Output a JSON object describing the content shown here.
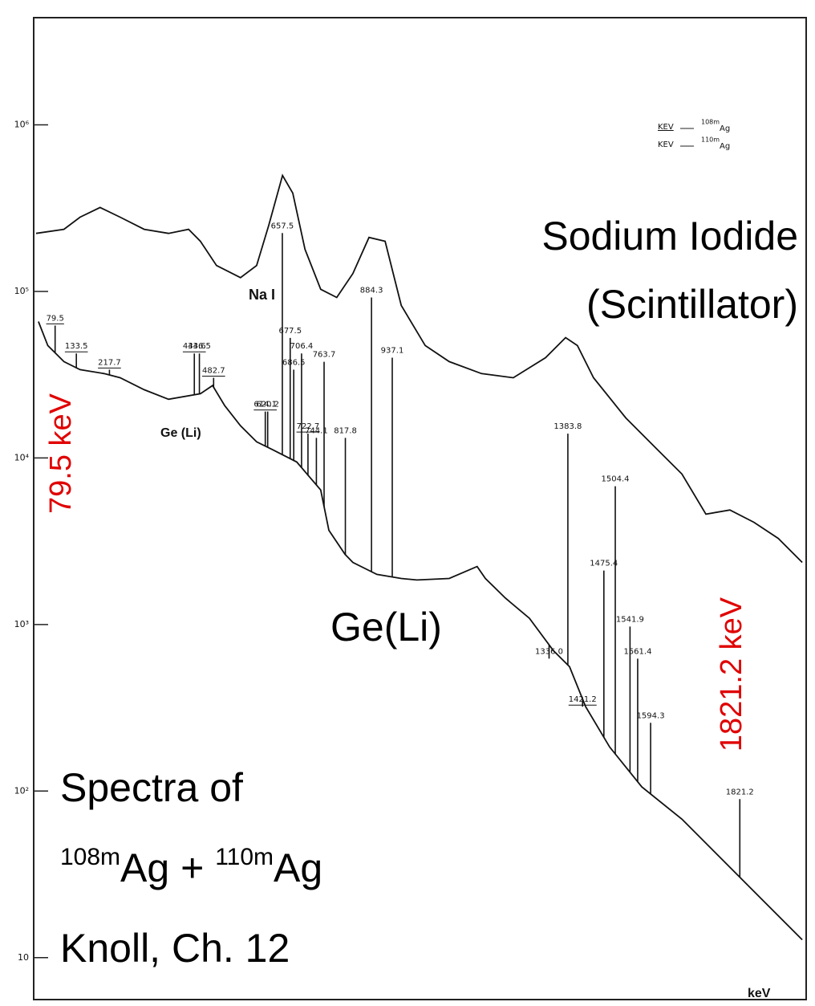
{
  "chart_data": {
    "type": "line",
    "log_y": true,
    "xlim": [
      25,
      1990
    ],
    "ylim": [
      5.6,
      4400000
    ],
    "yticks": [
      10,
      {
        "value": 100,
        "label": "10²"
      },
      {
        "value": 1000,
        "label": "10³"
      },
      {
        "value": 10000,
        "label": "10⁴"
      },
      {
        "value": 100000,
        "label": "10⁵"
      },
      {
        "value": 1000000,
        "label": "10⁶"
      }
    ],
    "x_label": "keV",
    "series": [
      {
        "name": "Na I",
        "color": "#111111",
        "x": [
          31,
          102,
          143,
          194,
          245,
          306,
          368,
          419,
          449,
          490,
          551,
          592,
          623,
          658,
          684,
          715,
          755,
          796,
          837,
          878,
          919,
          960,
          1021,
          1082,
          1164,
          1245,
          1327,
          1378,
          1408,
          1449,
          1531,
          1612,
          1674,
          1735,
          1796,
          1857,
          1919,
          1980
        ],
        "values": [
          223000,
          236000,
          279000,
          319000,
          279000,
          236000,
          223000,
          236000,
          200000,
          143000,
          121000,
          143000,
          250000,
          497000,
          389000,
          179000,
          103000,
          92000,
          128000,
          211000,
          200000,
          82400,
          47300,
          37900,
          32100,
          30300,
          40000,
          52800,
          47300,
          30300,
          17400,
          11200,
          8010,
          4600,
          4870,
          4110,
          3290,
          2360
        ]
      },
      {
        "name": "Ge (Li)",
        "color": "#111111",
        "x": [
          37,
          61,
          102,
          143,
          204,
          245,
          306,
          368,
          449,
          480,
          511,
          551,
          592,
          633,
          694,
          755,
          776,
          817,
          837,
          898,
          960,
          1000,
          1082,
          1153,
          1174,
          1225,
          1286,
          1347,
          1388,
          1429,
          1490,
          1572,
          1674,
          1776,
          1878,
          1980
        ],
        "values": [
          65900,
          47300,
          37900,
          33900,
          32100,
          30300,
          25700,
          22500,
          24300,
          27200,
          20600,
          15600,
          12500,
          11200,
          9460,
          6420,
          3680,
          2640,
          2360,
          2000,
          1890,
          1850,
          1890,
          2230,
          1890,
          1440,
          1090,
          697,
          558,
          321,
          184,
          106,
          67.8,
          38.9,
          22.3,
          12.8
        ]
      }
    ],
    "peaks": [
      {
        "energy": 79.5,
        "height": 62400,
        "underline": true
      },
      {
        "energy": 133.5,
        "height": 42400,
        "underline": true
      },
      {
        "energy": 217.7,
        "height": 33900,
        "underline": true
      },
      {
        "energy": 433.6,
        "height": 42400,
        "underline": true
      },
      {
        "energy": 446.5,
        "height": 42400,
        "underline": false
      },
      {
        "energy": 482.7,
        "height": 30300,
        "underline": true
      },
      {
        "energy": 614.1,
        "height": 19000,
        "underline": true
      },
      {
        "energy": 620.2,
        "height": 19000,
        "underline": false
      },
      {
        "energy": 657.5,
        "height": 224000,
        "underline": false
      },
      {
        "energy": 677.5,
        "height": 52600,
        "underline": false
      },
      {
        "energy": 686.5,
        "height": 33900,
        "underline": false
      },
      {
        "energy": 706.4,
        "height": 42400,
        "underline": false
      },
      {
        "energy": 722.7,
        "height": 14000,
        "underline": true
      },
      {
        "energy": 744.1,
        "height": 13200,
        "underline": false
      },
      {
        "energy": 763.7,
        "height": 37800,
        "underline": false
      },
      {
        "energy": 817.8,
        "height": 13200,
        "underline": false
      },
      {
        "energy": 884.3,
        "height": 92000,
        "underline": false
      },
      {
        "energy": 937.1,
        "height": 40000,
        "underline": false
      },
      {
        "energy": 1336.0,
        "label": "1336.0",
        "height": 624,
        "underline": false
      },
      {
        "energy": 1383.8,
        "height": 14000,
        "underline": false
      },
      {
        "energy": 1421.2,
        "height": 321,
        "underline": true
      },
      {
        "energy": 1475.4,
        "height": 2110,
        "underline": false
      },
      {
        "energy": 1504.4,
        "height": 6760,
        "underline": false
      },
      {
        "energy": 1541.9,
        "height": 973,
        "underline": false
      },
      {
        "energy": 1561.4,
        "height": 624,
        "underline": false
      },
      {
        "energy": 1594.3,
        "height": 257,
        "underline": false
      },
      {
        "energy": 1821.2,
        "height": 89.5,
        "underline": false
      }
    ],
    "legend": [
      {
        "text": "KEV",
        "mass": "108m",
        "element": "Ag",
        "underline": true
      },
      {
        "text": "KEV",
        "mass": "110m",
        "element": "Ag",
        "underline": false
      }
    ],
    "annotations": {
      "nai_big": "Sodium Iodide",
      "nai_sub": "(Scintillator)",
      "ge_big": "Ge(Li)",
      "spectra": "Spectra of",
      "iso1_mass": "108m",
      "iso1_elem": "Ag + ",
      "iso2_mass": "110m",
      "iso2_elem": "Ag",
      "source": "Knoll, Ch. 12",
      "low_line": "79.5 keV",
      "high_line": "1821.2 keV"
    }
  }
}
